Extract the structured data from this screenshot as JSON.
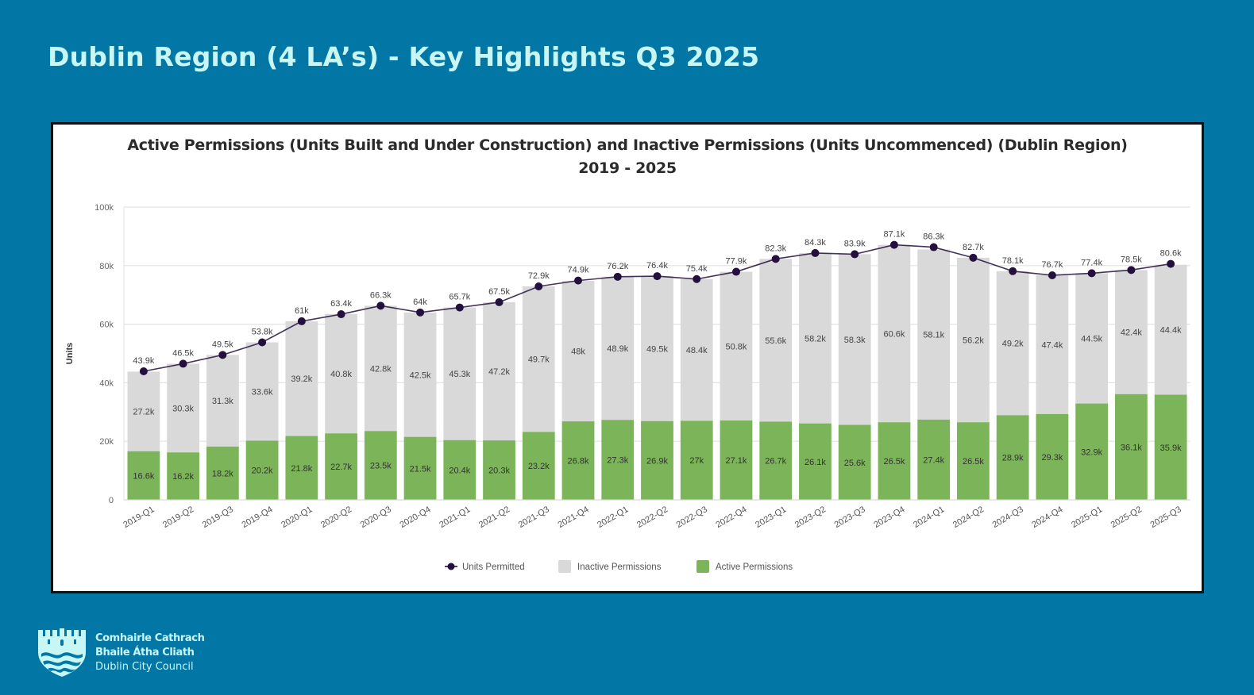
{
  "page": {
    "title": "Dublin Region (4 LA’s) - Key Highlights Q3 2025"
  },
  "branding": {
    "logo_icon": "castle-icon",
    "line1": "Comhairle Cathrach",
    "line2": "Bhaile Átha Cliath",
    "line3": "Dublin City Council"
  },
  "colors": {
    "background": "#0277a5",
    "title_text": "#c8f6f4",
    "active": "#7cb45a",
    "inactive": "#d9d9d9",
    "line": "#23103d"
  },
  "chart_data": {
    "type": "bar",
    "stacked": true,
    "title": "Active Permissions (Units Built and Under Construction) and Inactive Permissions (Units Uncommenced) (Dublin Region)",
    "subtitle": "2019 - 2025",
    "xlabel": "",
    "ylabel": "Units",
    "ylim": [
      0,
      100000
    ],
    "yticks": [
      0,
      20000,
      40000,
      60000,
      80000,
      100000
    ],
    "ytick_labels": [
      "0",
      "20k",
      "40k",
      "60k",
      "80k",
      "100k"
    ],
    "grid": true,
    "legend_position": "bottom-center",
    "categories": [
      "2019-Q1",
      "2019-Q2",
      "2019-Q3",
      "2019-Q4",
      "2020-Q1",
      "2020-Q2",
      "2020-Q3",
      "2020-Q4",
      "2021-Q1",
      "2021-Q2",
      "2021-Q3",
      "2021-Q4",
      "2022-Q1",
      "2022-Q2",
      "2022-Q3",
      "2022-Q4",
      "2023-Q1",
      "2023-Q2",
      "2023-Q3",
      "2023-Q4",
      "2024-Q1",
      "2024-Q2",
      "2024-Q3",
      "2024-Q4",
      "2025-Q1",
      "2025-Q2",
      "2025-Q3"
    ],
    "series": [
      {
        "name": "Active Permissions",
        "type": "bar",
        "color": "#7cb45a",
        "values": [
          16600,
          16200,
          18200,
          20200,
          21800,
          22700,
          23500,
          21500,
          20400,
          20300,
          23200,
          26800,
          27300,
          26900,
          27000,
          27100,
          26700,
          26100,
          25600,
          26500,
          27400,
          26500,
          28900,
          29300,
          32900,
          36100,
          35900
        ],
        "labels": [
          "16.6k",
          "16.2k",
          "18.2k",
          "20.2k",
          "21.8k",
          "22.7k",
          "23.5k",
          "21.5k",
          "20.4k",
          "20.3k",
          "23.2k",
          "26.8k",
          "27.3k",
          "26.9k",
          "27k",
          "27.1k",
          "26.7k",
          "26.1k",
          "25.6k",
          "26.5k",
          "27.4k",
          "26.5k",
          "28.9k",
          "29.3k",
          "32.9k",
          "36.1k",
          "35.9k"
        ]
      },
      {
        "name": "Inactive Permissions",
        "type": "bar",
        "color": "#d9d9d9",
        "values": [
          27200,
          30300,
          31300,
          33600,
          39200,
          40800,
          42800,
          42500,
          45300,
          47200,
          49700,
          48000,
          48900,
          49500,
          48400,
          50800,
          55600,
          58200,
          58300,
          60600,
          58100,
          56200,
          49200,
          47400,
          44500,
          42400,
          44400
        ],
        "labels": [
          "27.2k",
          "30.3k",
          "31.3k",
          "33.6k",
          "39.2k",
          "40.8k",
          "42.8k",
          "42.5k",
          "45.3k",
          "47.2k",
          "49.7k",
          "48k",
          "48.9k",
          "49.5k",
          "48.4k",
          "50.8k",
          "55.6k",
          "58.2k",
          "58.3k",
          "60.6k",
          "58.1k",
          "56.2k",
          "49.2k",
          "47.4k",
          "44.5k",
          "42.4k",
          "44.4k"
        ]
      },
      {
        "name": "Units Permitted",
        "type": "line",
        "color": "#23103d",
        "values": [
          43900,
          46500,
          49500,
          53800,
          61000,
          63400,
          66300,
          64000,
          65700,
          67500,
          72900,
          74900,
          76200,
          76400,
          75400,
          77900,
          82300,
          84300,
          83900,
          87100,
          86300,
          82700,
          78100,
          76700,
          77400,
          78500,
          80600
        ],
        "labels": [
          "43.9k",
          "46.5k",
          "49.5k",
          "53.8k",
          "61k",
          "63.4k",
          "66.3k",
          "64k",
          "65.7k",
          "67.5k",
          "72.9k",
          "74.9k",
          "76.2k",
          "76.4k",
          "75.4k",
          "77.9k",
          "82.3k",
          "84.3k",
          "83.9k",
          "87.1k",
          "86.3k",
          "82.7k",
          "78.1k",
          "76.7k",
          "77.4k",
          "78.5k",
          "80.6k"
        ]
      }
    ],
    "legend": [
      {
        "name": "Units Permitted",
        "marker": "line-dot"
      },
      {
        "name": "Inactive Permissions",
        "marker": "square"
      },
      {
        "name": "Active Permissions",
        "marker": "square"
      }
    ]
  }
}
